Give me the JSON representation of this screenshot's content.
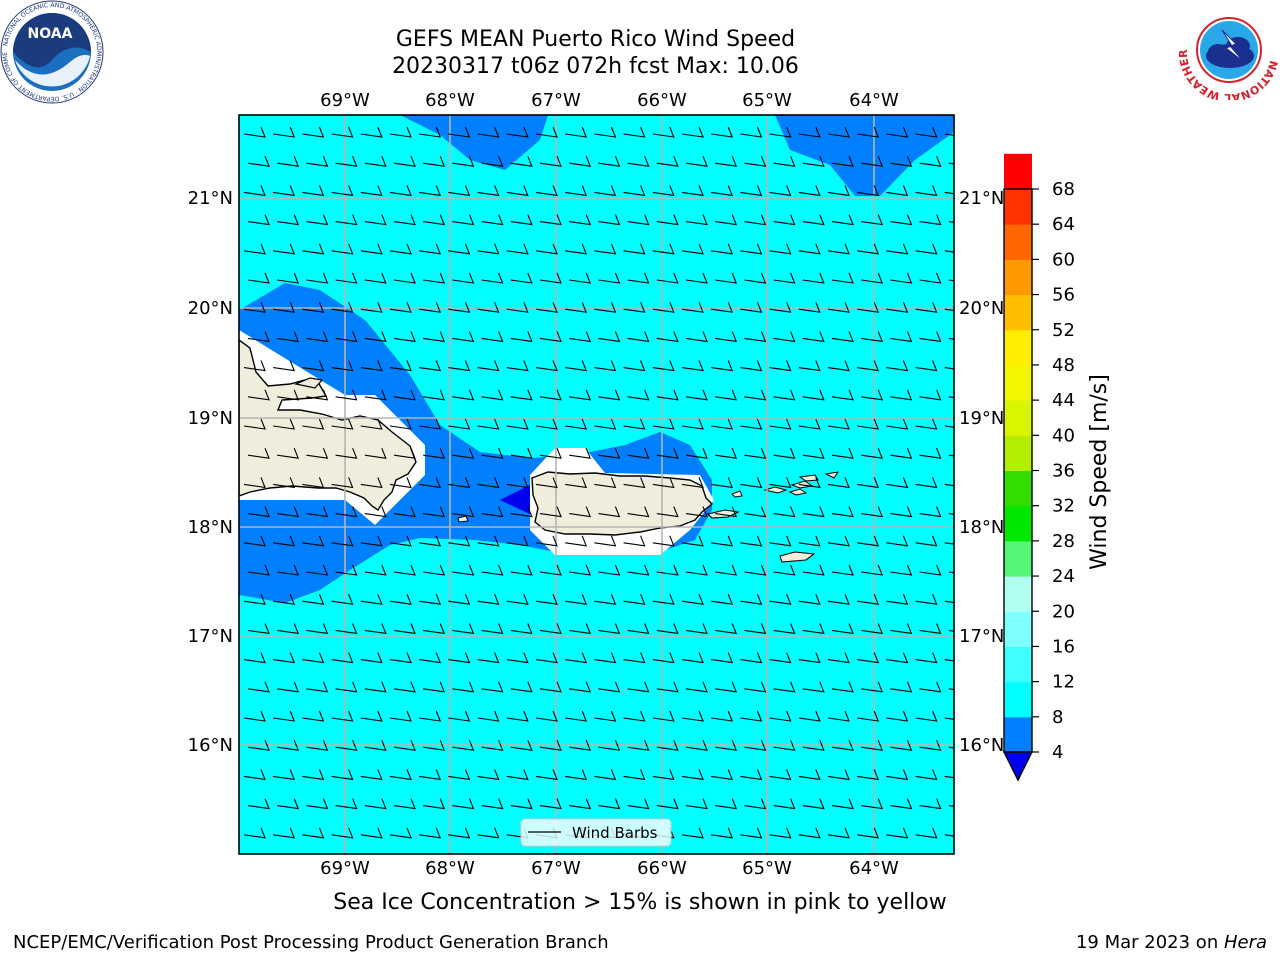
{
  "title": {
    "line1": "GEFS MEAN Puerto Rico Wind Speed",
    "line2": "20230317 t06z 072h fcst   Max: 10.06"
  },
  "subtitle": "Sea Ice Concentration > 15% is shown in pink to yellow",
  "footer": {
    "left": "NCEP/EMC/Verification Post Processing Product Generation Branch",
    "right_date": "19 Mar 2023 on ",
    "right_host": "Hera"
  },
  "logos": {
    "noaa": {
      "text": "NOAA",
      "ring_text": "NATIONAL OCEANIC AND ATMOSPHERIC ADMINISTRATION · U.S. DEPARTMENT OF COMMERCE"
    },
    "nws": {
      "ring_text": "NATIONAL WEATHER SERVICE"
    }
  },
  "map": {
    "lon_ticks": [
      "69°W",
      "68°W",
      "67°W",
      "66°W",
      "65°W",
      "64°W"
    ],
    "lat_ticks": [
      "21°N",
      "20°N",
      "19°N",
      "18°N",
      "17°N",
      "16°N"
    ],
    "lon_range": [
      -70.0,
      -63.3
    ],
    "lat_range": [
      15.0,
      21.75
    ],
    "legend_label": "Wind Barbs",
    "background_color": "#00ffff",
    "land_color": "#efeedd"
  },
  "colorbar": {
    "label": "Wind Speed [m/s]",
    "ticks": [
      "68",
      "64",
      "60",
      "56",
      "52",
      "48",
      "44",
      "40",
      "36",
      "32",
      "28",
      "24",
      "20",
      "16",
      "12",
      "8",
      "4"
    ],
    "levels": [
      4,
      8,
      12,
      16,
      20,
      24,
      28,
      32,
      36,
      40,
      44,
      48,
      52,
      56,
      60,
      64,
      68
    ],
    "colors": [
      "#0080ff",
      "#00ffff",
      "#40ffff",
      "#80ffff",
      "#b0fff0",
      "#55f575",
      "#00e800",
      "#33dd00",
      "#b3ee00",
      "#d9f500",
      "#f5f500",
      "#ffee00",
      "#ffbf00",
      "#ff9900",
      "#ff6600",
      "#ff3300",
      "#ff0000"
    ],
    "under_color": "#0000ee"
  }
}
